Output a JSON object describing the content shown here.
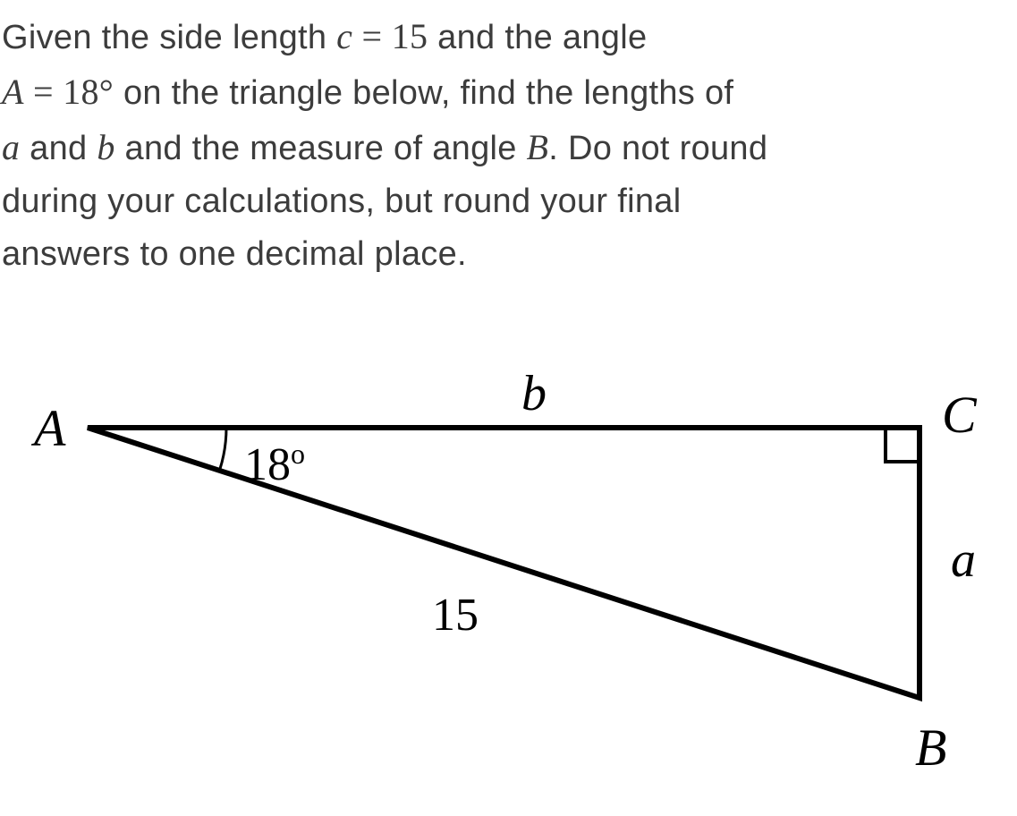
{
  "problem": {
    "line1_pre": "Given the side length ",
    "line1_math": "c = 15",
    "line1_post": " and the angle",
    "line2_math": "A = 18°",
    "line2_post": " on the triangle below, find the lengths of",
    "line3_pre1": "a",
    "line3_mid": " and ",
    "line3_pre2": "b",
    "line3_mid2": " and the measure of angle ",
    "line3_pre3": "B",
    "line3_post": ". Do not round",
    "line4": "during your calculations, but round your final",
    "line5": "answers to one decimal place."
  },
  "triangle": {
    "vertex_A": "A",
    "vertex_B": "B",
    "vertex_C": "C",
    "side_a": "a",
    "side_b": "b",
    "angle_A": "18",
    "hypotenuse": "15",
    "stroke_color": "#000000",
    "stroke_width": 6,
    "angle_arc_width": 3,
    "right_angle_size": 38,
    "points": {
      "A": [
        78,
        68
      ],
      "C": [
        1008,
        68
      ],
      "B": [
        1008,
        370
      ]
    }
  }
}
